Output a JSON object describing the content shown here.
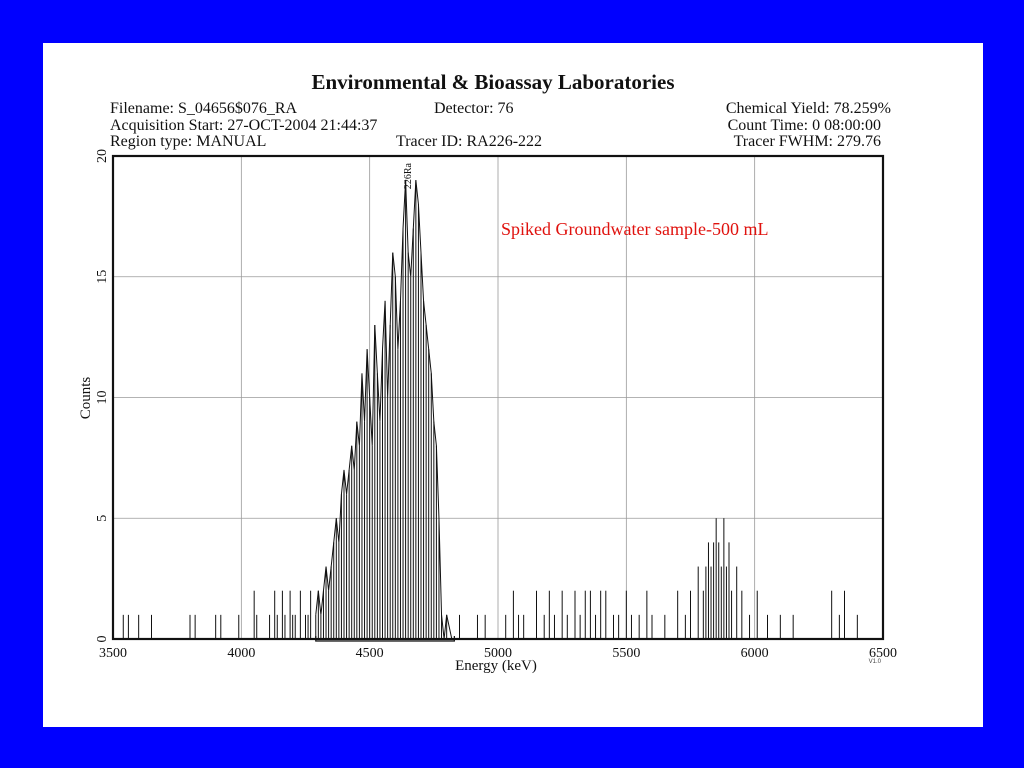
{
  "header": {
    "title": "Environmental & Bioassay Laboratories",
    "filename": "Filename: S_04656$076_RA",
    "detector": "Detector: 76",
    "chemical_yield": "Chemical Yield: 78.259%",
    "acquisition_start": "Acquisition Start: 27-OCT-2004 21:44:37",
    "count_time": "Count Time: 0 08:00:00",
    "region_type": "Region type: MANUAL",
    "tracer_id": "Tracer ID: RA226-222",
    "tracer_fwhm": "Tracer FWHM: 279.76"
  },
  "annotation": "Spiked Groundwater sample-500 mL",
  "peak_label": "226Ra",
  "version_label": "V1.0",
  "chart_data": {
    "type": "line",
    "title": "",
    "xlabel": "Energy (keV)",
    "ylabel": "Counts",
    "xlim": [
      3500,
      6500
    ],
    "ylim": [
      0,
      20
    ],
    "xticks": [
      3500,
      4000,
      4500,
      5000,
      5500,
      6000,
      6500
    ],
    "yticks": [
      0,
      5,
      10,
      15,
      20
    ],
    "grid": true,
    "region_of_interest_keV": [
      4290,
      4830
    ],
    "series": [
      {
        "name": "",
        "description_points_keV_counts": true,
        "x": [
          3540,
          3560,
          3600,
          3650,
          3800,
          3820,
          3900,
          3920,
          3990,
          4050,
          4060,
          4110,
          4130,
          4140,
          4160,
          4170,
          4190,
          4200,
          4210,
          4230,
          4250,
          4260,
          4270,
          4290,
          4300,
          4310,
          4320,
          4330,
          4340,
          4350,
          4360,
          4370,
          4380,
          4390,
          4400,
          4410,
          4420,
          4430,
          4440,
          4450,
          4460,
          4470,
          4480,
          4490,
          4500,
          4510,
          4520,
          4530,
          4540,
          4550,
          4560,
          4570,
          4580,
          4590,
          4600,
          4610,
          4620,
          4630,
          4640,
          4650,
          4660,
          4670,
          4680,
          4690,
          4700,
          4710,
          4720,
          4730,
          4740,
          4750,
          4760,
          4770,
          4780,
          4790,
          4800,
          4820,
          4850,
          4900,
          4920,
          4950,
          5000,
          5030,
          5060,
          5080,
          5100,
          5150,
          5180,
          5200,
          5220,
          5250,
          5270,
          5300,
          5320,
          5340,
          5360,
          5380,
          5400,
          5420,
          5450,
          5470,
          5500,
          5520,
          5550,
          5580,
          5600,
          5650,
          5700,
          5730,
          5750,
          5780,
          5800,
          5810,
          5820,
          5830,
          5840,
          5850,
          5860,
          5870,
          5880,
          5890,
          5900,
          5910,
          5930,
          5950,
          5980,
          6010,
          6050,
          6100,
          6150,
          6300,
          6330,
          6350,
          6400
        ],
        "y": [
          1,
          1,
          1,
          1,
          1,
          1,
          1,
          1,
          1,
          2,
          1,
          1,
          2,
          1,
          2,
          1,
          2,
          1,
          1,
          2,
          1,
          1,
          2,
          1,
          2,
          1,
          2,
          3,
          2,
          3,
          4,
          5,
          4,
          6,
          7,
          6,
          7,
          8,
          7,
          9,
          8,
          11,
          9,
          12,
          10,
          8,
          13,
          11,
          9,
          12,
          14,
          10,
          13,
          16,
          15,
          12,
          14,
          17,
          19,
          16,
          15,
          17,
          19,
          18,
          16,
          14,
          13,
          12,
          11,
          9,
          8,
          5,
          1,
          0,
          1,
          0,
          1,
          0,
          1,
          1,
          0,
          1,
          2,
          1,
          1,
          2,
          1,
          2,
          1,
          2,
          1,
          2,
          1,
          2,
          2,
          1,
          2,
          2,
          1,
          1,
          2,
          1,
          1,
          2,
          1,
          1,
          2,
          1,
          2,
          3,
          2,
          3,
          4,
          3,
          4,
          5,
          4,
          3,
          5,
          3,
          4,
          2,
          3,
          2,
          1,
          2,
          1,
          1,
          1,
          2,
          1,
          2,
          1
        ]
      }
    ]
  }
}
